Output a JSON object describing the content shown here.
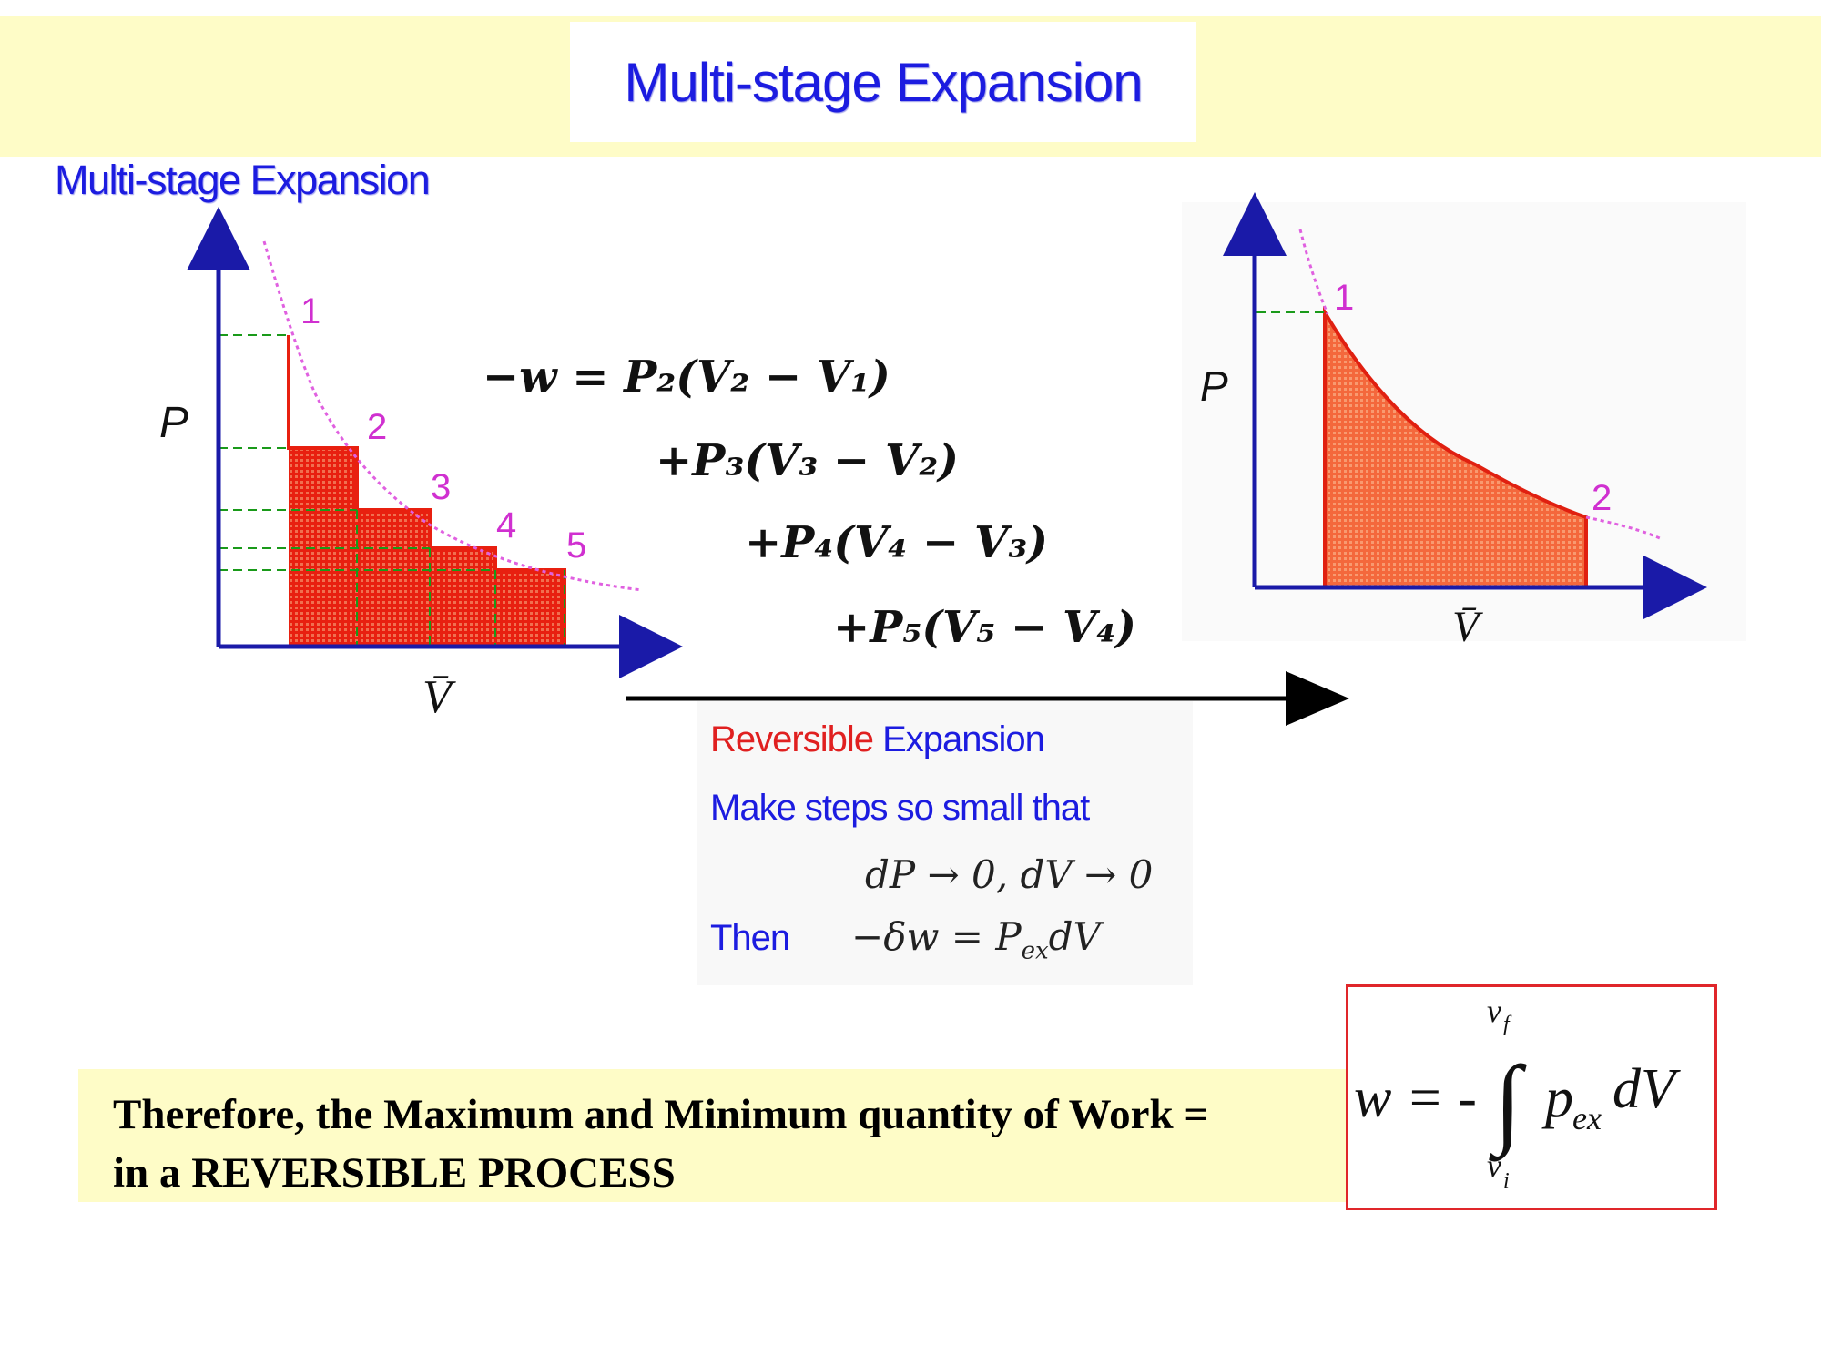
{
  "header": {
    "title": "Multi-stage Expansion"
  },
  "left_diagram": {
    "subtitle": "Multi-stage Expansion",
    "y_axis_label": "P",
    "x_axis_label": "V̄",
    "stage_labels": [
      "1",
      "2",
      "3",
      "4",
      "5"
    ]
  },
  "work_equation": {
    "line1": "−w = P₂(V₂ − V₁)",
    "line2": "+P₃(V₃ − V₂)",
    "line3": "+P₄(V₄ − V₃)",
    "line4": "+P₅(V₅ − V₄)"
  },
  "right_diagram": {
    "y_axis_label": "P",
    "x_axis_label": "V̄",
    "point_labels": [
      "1",
      "2"
    ]
  },
  "reversible_note": {
    "title_red": "Reversible",
    "title_blue": " Expansion",
    "line2": "Make steps so small that",
    "math": "dP → 0, dV → 0",
    "then_label": "Then",
    "then_eq": "−δw = P",
    "then_eq_sub": "ex",
    "then_eq_end": "dV"
  },
  "conclusion": {
    "line1": "Therefore, the Maximum and Minimum quantity of Work =",
    "line2": "in a REVERSIBLE PROCESS"
  },
  "formula": {
    "lhs": "w = -",
    "upper_limit": "v",
    "upper_sub": "f",
    "lower_limit": "v",
    "lower_sub": "i",
    "integrand": "p",
    "integrand_sub": "ex",
    "differential": "dV"
  },
  "colors": {
    "title_blue": "#1c1ce0",
    "axis_blue": "#1a1aa8",
    "label_magenta": "#d030d0",
    "curve_magenta": "#e060e0",
    "fill_red": "#e82010",
    "fill_orange": "#f4683c",
    "guide_green": "#1a9a1a",
    "band_yellow": "#fefcc7",
    "box_red": "#e0262a"
  }
}
